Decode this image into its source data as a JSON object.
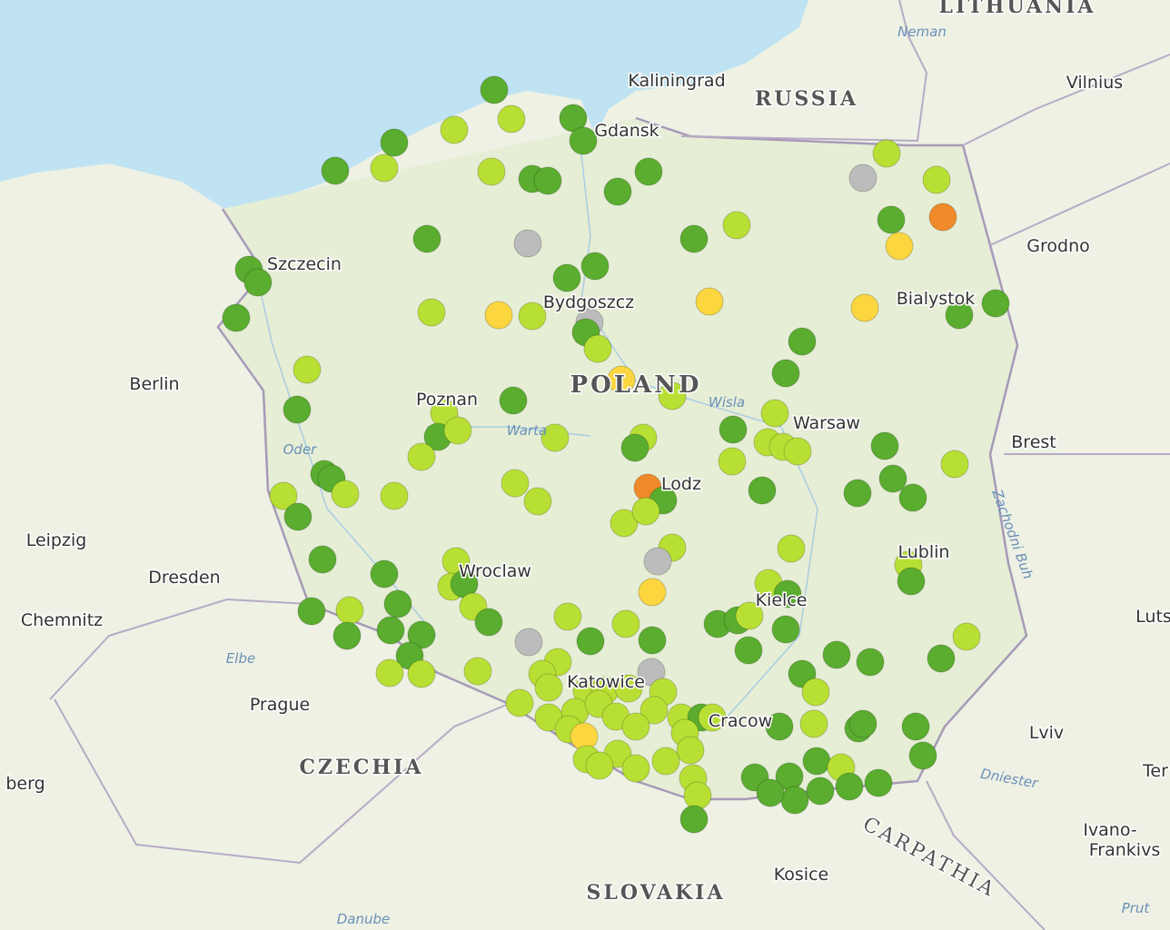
{
  "map": {
    "labels": {
      "lithuania": "LITHUANIA",
      "neman": "Neman",
      "kaliningrad": "Kaliningrad",
      "russia": "RUSSIA",
      "vilnius": "Vilnius",
      "gdansk": "Gdansk",
      "grodno": "Grodno",
      "szczecin": "Szczecin",
      "bydgoszcz": "Bydgoszcz",
      "bialystok": "Bialystok",
      "berlin": "Berlin",
      "poland": "POLAND",
      "poznan": "Poznan",
      "wisla": "Wisla",
      "warsaw": "Warsaw",
      "warta": "Warta",
      "oder": "Oder",
      "brest": "Brest",
      "lodz": "Lodz",
      "buh": "Zachodni Buh",
      "leipzig": "Leipzig",
      "lublin": "Lublin",
      "wroclaw": "Wroclaw",
      "dresden": "Dresden",
      "kielce": "Kielce",
      "chemnitz": "Chemnitz",
      "luts": "Luts",
      "elbe": "Elbe",
      "katowice": "Katowice",
      "prague": "Prague",
      "cracow": "Cracow",
      "lviv": "Lviv",
      "czechia": "CZECHIA",
      "dniester": "Dniester",
      "berg": "berg",
      "carpathia": "CARPATHIA",
      "ivano1": "Ivano-",
      "ivano2": "Frankivs",
      "ter": "Ter",
      "kosice": "Kosice",
      "slovakia": "SLOVAKIA",
      "danube": "Danube",
      "prut": "Prut"
    }
  }
}
